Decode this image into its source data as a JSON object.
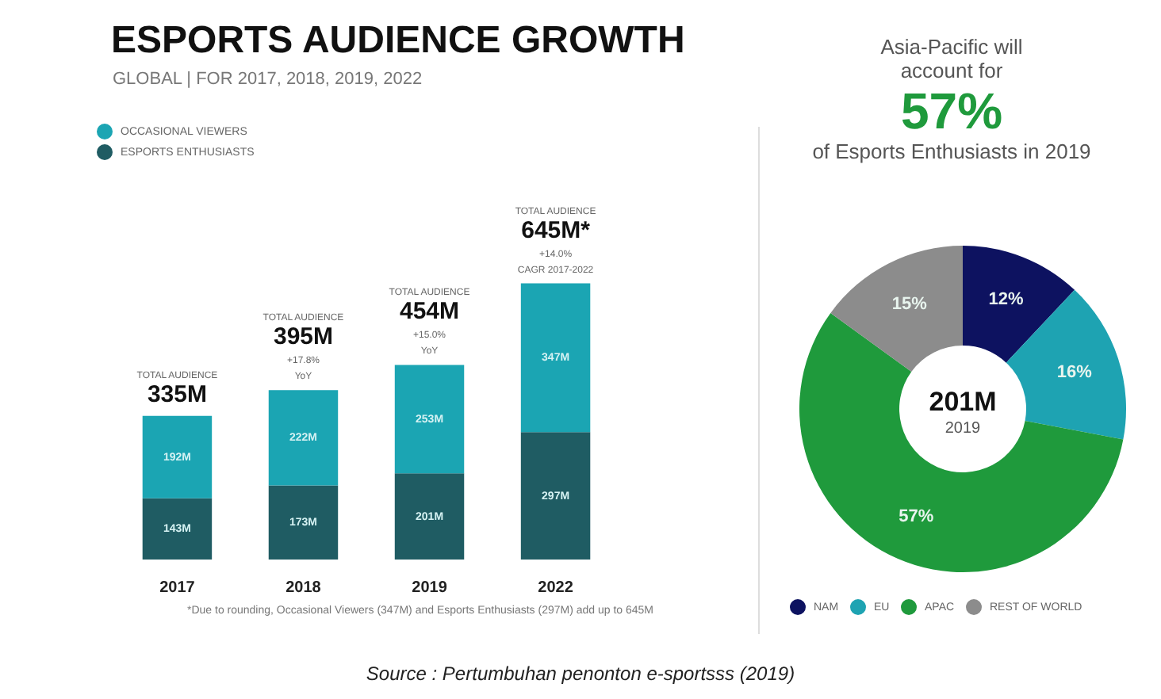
{
  "chart_data": [
    {
      "type": "bar",
      "title": "ESPORTS AUDIENCE GROWTH",
      "subtitle": "GLOBAL | FOR 2017, 2018, 2019, 2022",
      "categories": [
        "2017",
        "2018",
        "2019",
        "2022"
      ],
      "stacked": true,
      "legend": "top left",
      "series": [
        {
          "name": "ESPORTS ENTHUSIASTS",
          "color": "#1f5c63",
          "values": [
            143,
            173,
            201,
            297
          ],
          "value_labels": [
            "143M",
            "173M",
            "201M",
            "297M"
          ]
        },
        {
          "name": "OCCASIONAL VIEWERS",
          "color": "#1ba5b3",
          "values": [
            192,
            222,
            253,
            347
          ],
          "value_labels": [
            "192M",
            "222M",
            "253M",
            "347M"
          ]
        }
      ],
      "totals": [
        "335M",
        "395M",
        "454M",
        "645M*"
      ],
      "annotations": [
        "TOTAL AUDIENCE",
        "TOTAL AUDIENCE",
        "+17.8%",
        "YoY",
        "TOTAL AUDIENCE",
        "+15.0%",
        "YoY",
        "TOTAL AUDIENCE",
        "+14.0%",
        "CAGR 2017-2022",
        "*Due to rounding, Occasional Viewers (347M) and Esports Enthusiasts (297M) add up to 645M",
        "Source : Pertumbuhan penonton e-sportsss (2019)"
      ]
    },
    {
      "type": "donut",
      "categories": [
        "NAM",
        "EU",
        "APAC",
        "REST OF WORLD"
      ],
      "values": [
        12,
        16,
        57,
        15
      ],
      "colors": [
        "#0d1260",
        "#1ea3b2",
        "#1f9a3c",
        "#8c8c8c"
      ],
      "value_labels": [
        "12%",
        "16%",
        "57%",
        "15%"
      ],
      "legend": "bottom",
      "annotations": [
        "Asia-Pacific will account for",
        "57%",
        "of Esports Enthusiasts in 2019",
        "201M",
        "2019"
      ]
    }
  ]
}
